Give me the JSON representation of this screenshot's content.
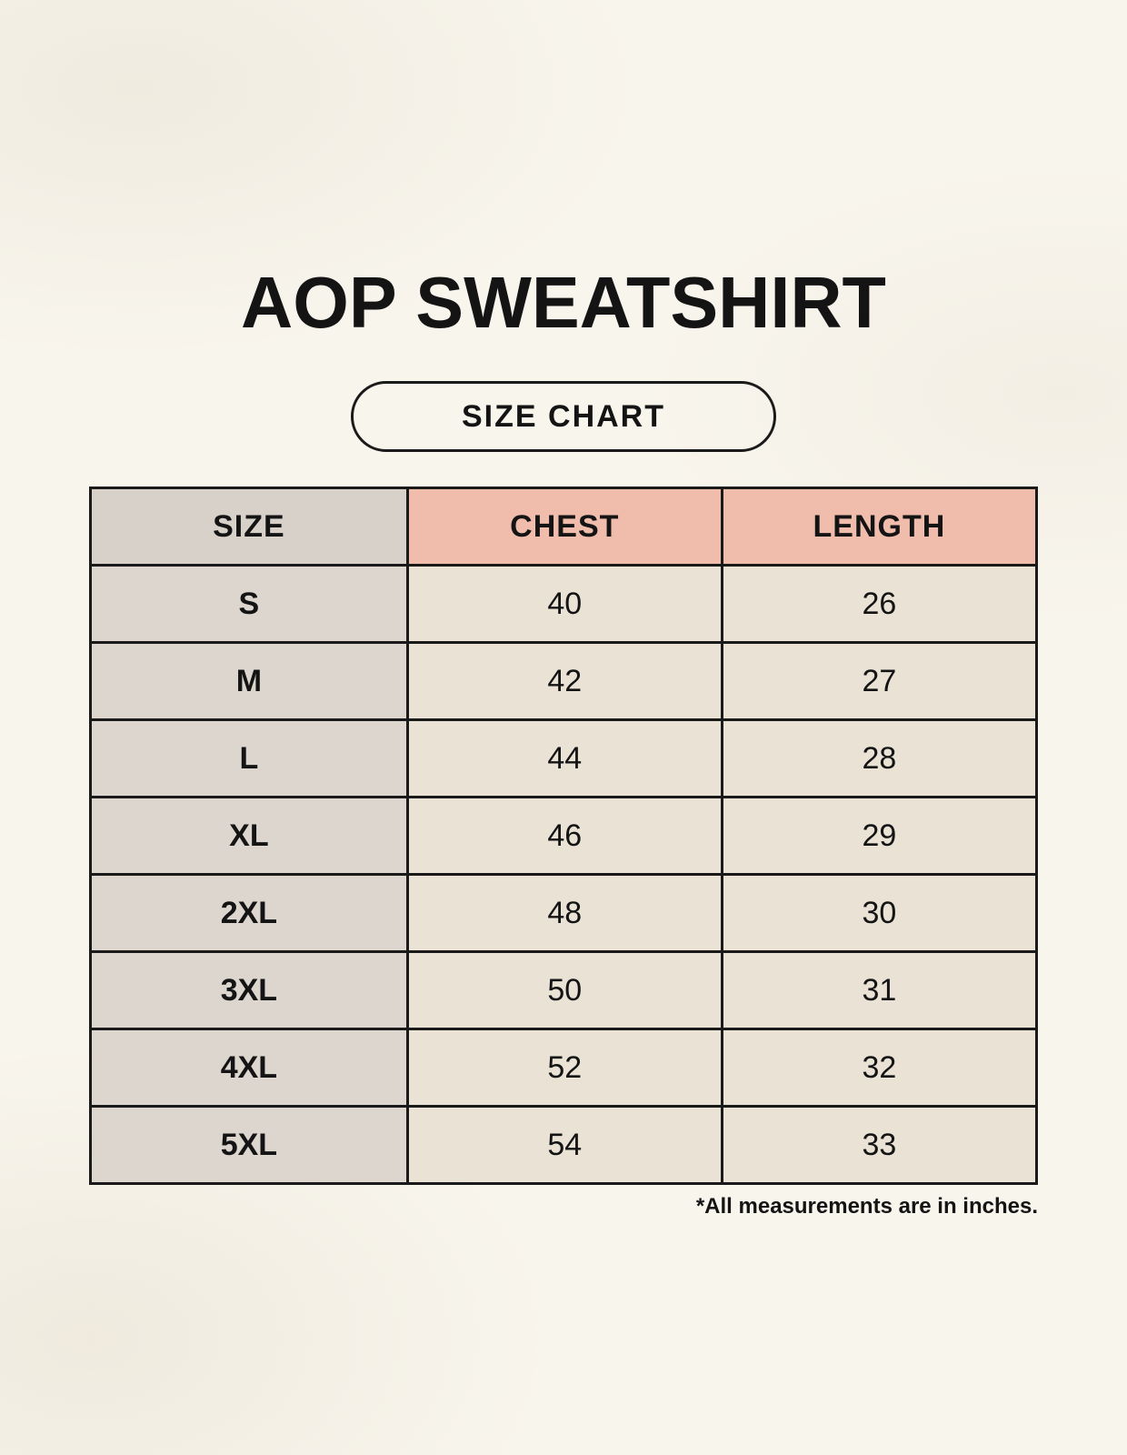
{
  "page": {
    "title": "AOP SWEATSHIRT",
    "size_chart_label": "SIZE CHART",
    "footnote": "*All measurements are in inches."
  },
  "colors": {
    "page_background": "#f8f5ed",
    "header_size_bg": "#d7d1ca",
    "header_measure_bg": "#f0bcab",
    "size_column_bg": "#dcd6ce",
    "value_cell_bg": "#e9e2d5",
    "table_border": "#1a1a1a",
    "text": "#1c1c1c"
  },
  "table": {
    "headers": [
      "SIZE",
      "CHEST",
      "LENGTH"
    ],
    "rows": [
      {
        "size": "S",
        "chest": "40",
        "length": "26"
      },
      {
        "size": "M",
        "chest": "42",
        "length": "27"
      },
      {
        "size": "L",
        "chest": "44",
        "length": "28"
      },
      {
        "size": "XL",
        "chest": "46",
        "length": "29"
      },
      {
        "size": "2XL",
        "chest": "48",
        "length": "30"
      },
      {
        "size": "3XL",
        "chest": "50",
        "length": "31"
      },
      {
        "size": "4XL",
        "chest": "52",
        "length": "32"
      },
      {
        "size": "5XL",
        "chest": "54",
        "length": "33"
      }
    ]
  },
  "chart_data": {
    "type": "table",
    "title": "AOP SWEATSHIRT",
    "subtitle": "SIZE CHART",
    "columns": [
      "SIZE",
      "CHEST",
      "LENGTH"
    ],
    "rows": [
      [
        "S",
        40,
        26
      ],
      [
        "M",
        42,
        27
      ],
      [
        "L",
        44,
        28
      ],
      [
        "XL",
        46,
        29
      ],
      [
        "2XL",
        48,
        30
      ],
      [
        "3XL",
        50,
        31
      ],
      [
        "4XL",
        52,
        32
      ],
      [
        "5XL",
        54,
        33
      ]
    ],
    "units": "inches",
    "note": "*All measurements are in inches."
  }
}
